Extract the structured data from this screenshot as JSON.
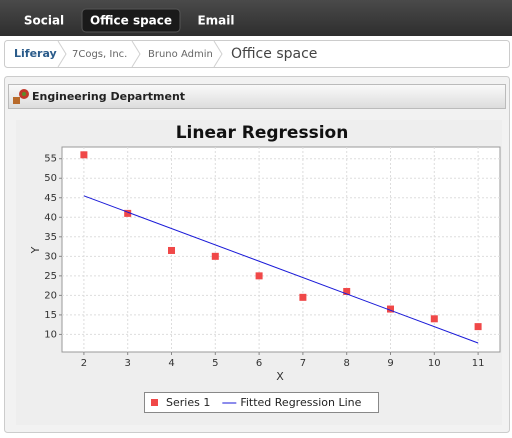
{
  "nav": {
    "tabs": [
      "Social",
      "Office space",
      "Email"
    ]
  },
  "breadcrumb": [
    "Liferay",
    "7Cogs, Inc.",
    "Bruno Admin",
    "Office space"
  ],
  "portlet": {
    "title": "Engineering Department"
  },
  "chart_data": {
    "type": "scatter",
    "title": "Linear Regression",
    "x_label": "X",
    "y_label": "Y",
    "x": [
      2,
      3,
      4,
      5,
      6,
      7,
      8,
      9,
      10,
      11
    ],
    "series": [
      {
        "name": "Series 1",
        "type": "scatter",
        "color": "#f04848",
        "values": [
          56,
          41,
          31.5,
          30,
          25,
          19.5,
          21,
          16.5,
          14,
          12
        ]
      },
      {
        "name": "Fitted Regression Line",
        "type": "line",
        "color": "#1a1ad8",
        "x": [
          2,
          11
        ],
        "values": [
          45.5,
          7.8
        ]
      }
    ],
    "xlim": [
      1.5,
      11.5
    ],
    "ylim": [
      5.5,
      58
    ],
    "xticks": [
      2,
      3,
      4,
      5,
      6,
      7,
      8,
      9,
      10,
      11
    ],
    "yticks": [
      10,
      15,
      20,
      25,
      30,
      35,
      40,
      45,
      50,
      55
    ],
    "grid": true,
    "legend": "bottom"
  }
}
